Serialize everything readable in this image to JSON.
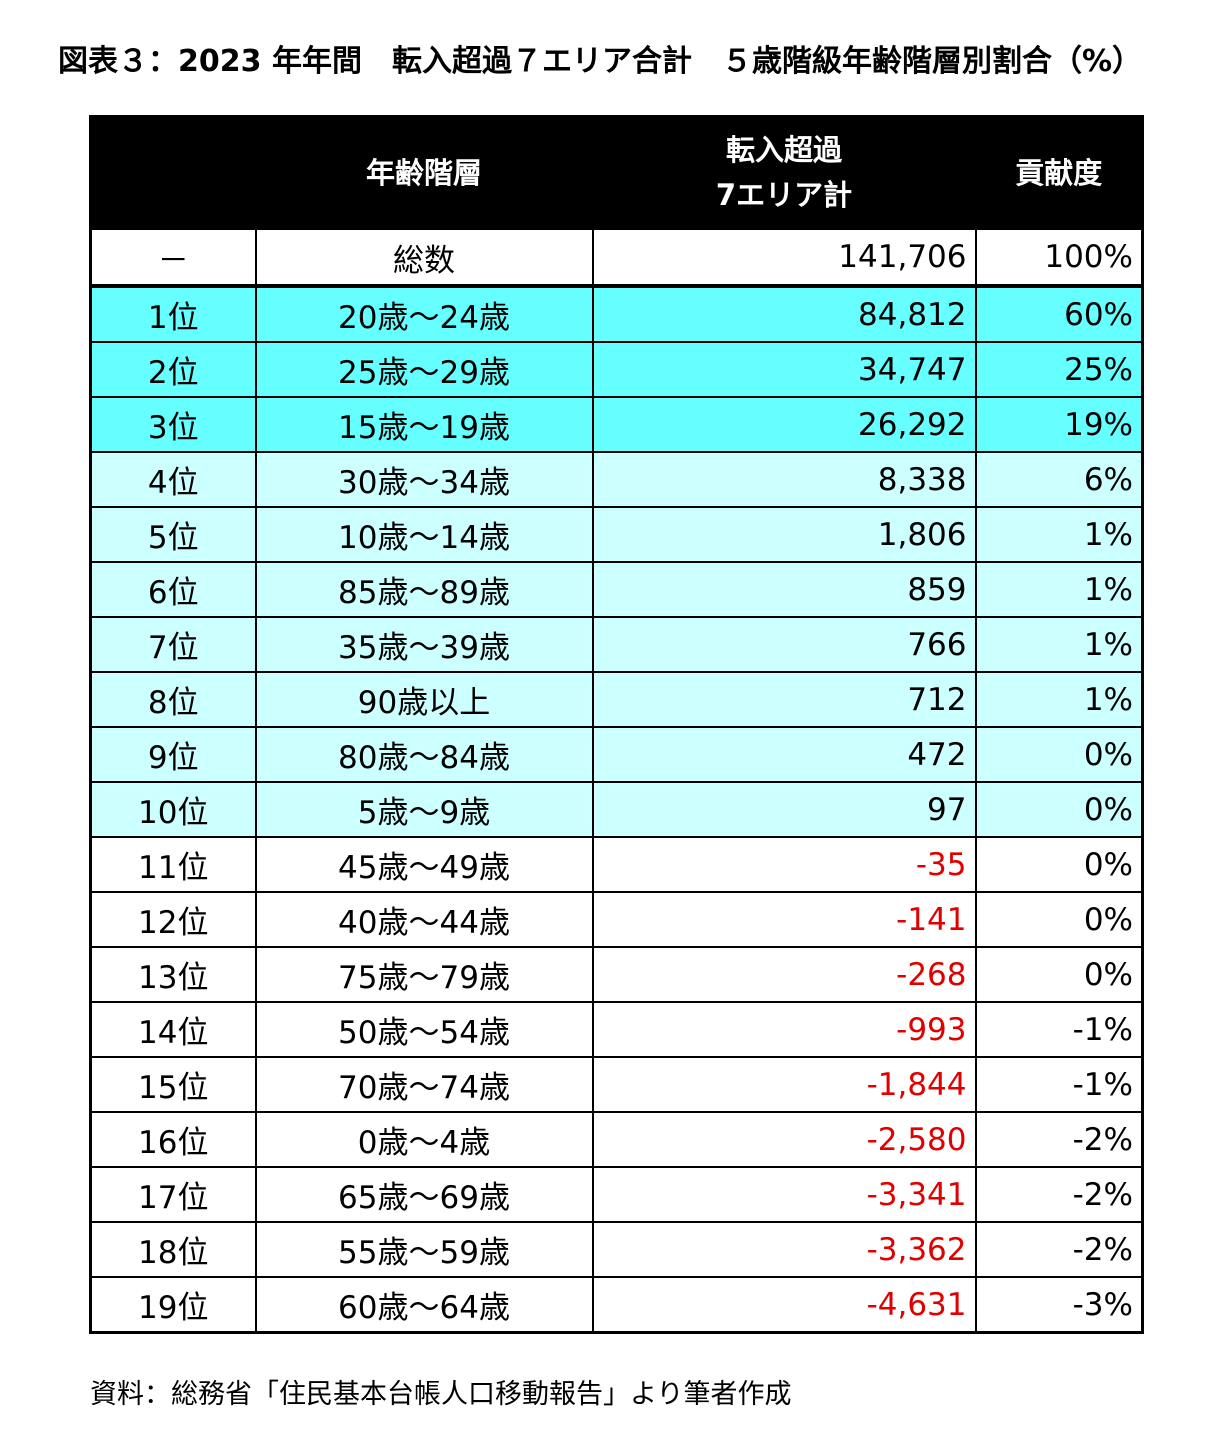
{
  "title": "図表３：2023 年年間　転入超過７エリア合計　５歳階級年齢階層別割合（%）",
  "headers": {
    "rank": "",
    "age": "年齢階層",
    "count_line1": "転入超過",
    "count_line2": "7エリア計",
    "share": "貢献度"
  },
  "total": {
    "rank": "－",
    "age": "総数",
    "count": "141,706",
    "share": "100%"
  },
  "rows": [
    {
      "rank": "1位",
      "age": "20歳～24歳",
      "count": "84,812",
      "share": "60%",
      "tier": "top"
    },
    {
      "rank": "2位",
      "age": "25歳～29歳",
      "count": "34,747",
      "share": "25%",
      "tier": "top"
    },
    {
      "rank": "3位",
      "age": "15歳～19歳",
      "count": "26,292",
      "share": "19%",
      "tier": "top"
    },
    {
      "rank": "4位",
      "age": "30歳～34歳",
      "count": "8,338",
      "share": "6%",
      "tier": "mid"
    },
    {
      "rank": "5位",
      "age": "10歳～14歳",
      "count": "1,806",
      "share": "1%",
      "tier": "mid"
    },
    {
      "rank": "6位",
      "age": "85歳～89歳",
      "count": "859",
      "share": "1%",
      "tier": "mid"
    },
    {
      "rank": "7位",
      "age": "35歳～39歳",
      "count": "766",
      "share": "1%",
      "tier": "mid"
    },
    {
      "rank": "8位",
      "age": "90歳以上",
      "count": "712",
      "share": "1%",
      "tier": "mid"
    },
    {
      "rank": "9位",
      "age": "80歳～84歳",
      "count": "472",
      "share": "0%",
      "tier": "mid"
    },
    {
      "rank": "10位",
      "age": "5歳～9歳",
      "count": "97",
      "share": "0%",
      "tier": "mid"
    },
    {
      "rank": "11位",
      "age": "45歳～49歳",
      "count": "-35",
      "share": "0%",
      "tier": "low"
    },
    {
      "rank": "12位",
      "age": "40歳～44歳",
      "count": "-141",
      "share": "0%",
      "tier": "low"
    },
    {
      "rank": "13位",
      "age": "75歳～79歳",
      "count": "-268",
      "share": "0%",
      "tier": "low"
    },
    {
      "rank": "14位",
      "age": "50歳～54歳",
      "count": "-993",
      "share": "-1%",
      "tier": "low"
    },
    {
      "rank": "15位",
      "age": "70歳～74歳",
      "count": "-1,844",
      "share": "-1%",
      "tier": "low"
    },
    {
      "rank": "16位",
      "age": "0歳～4歳",
      "count": "-2,580",
      "share": "-2%",
      "tier": "low"
    },
    {
      "rank": "17位",
      "age": "65歳～69歳",
      "count": "-3,341",
      "share": "-2%",
      "tier": "low"
    },
    {
      "rank": "18位",
      "age": "55歳～59歳",
      "count": "-3,362",
      "share": "-2%",
      "tier": "low"
    },
    {
      "rank": "19位",
      "age": "60歳～64歳",
      "count": "-4,631",
      "share": "-3%",
      "tier": "low"
    }
  ],
  "colors": {
    "top": "#66ffff",
    "mid": "#ccffff",
    "low": "#ffffff",
    "negative": "#e00000",
    "header_bg": "#000000"
  },
  "source": "資料：総務省「住民基本台帳人口移動報告」より筆者作成"
}
